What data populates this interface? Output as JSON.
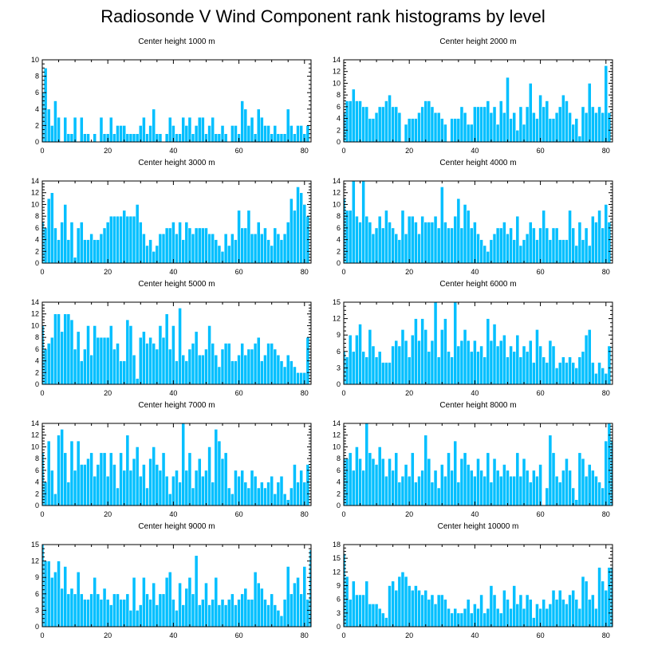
{
  "page": {
    "title": "Radiosonde V Wind Component rank histograms by level"
  },
  "colors": {
    "bar_fill": "#00BFFF",
    "bar_stroke": "#ffffff",
    "axis": "#000000"
  },
  "chart_data": [
    {
      "type": "bar",
      "title": "Center height 1000 m",
      "xlim": [
        0,
        82
      ],
      "ylim": [
        0,
        10
      ],
      "xticks": [
        0,
        20,
        40,
        60,
        80
      ],
      "yticks": [
        0,
        2,
        4,
        6,
        8,
        10
      ],
      "values": [
        6,
        9,
        4,
        2,
        5,
        3,
        0,
        3,
        1,
        1,
        3,
        0,
        3,
        1,
        1,
        0,
        1,
        0,
        3,
        1,
        1,
        3,
        1,
        2,
        2,
        2,
        1,
        1,
        1,
        1,
        2,
        3,
        1,
        2,
        4,
        1,
        1,
        0,
        1,
        3,
        2,
        1,
        1,
        3,
        2,
        3,
        1,
        2,
        3,
        3,
        1,
        2,
        3,
        1,
        1,
        2,
        1,
        0,
        2,
        2,
        1,
        5,
        4,
        2,
        3,
        1,
        4,
        3,
        2,
        2,
        1,
        2,
        1,
        1,
        1,
        4,
        2,
        1,
        2,
        2,
        1,
        2
      ]
    },
    {
      "type": "bar",
      "title": "Center height 2000 m",
      "xlim": [
        0,
        82
      ],
      "ylim": [
        0,
        14
      ],
      "xticks": [
        0,
        20,
        40,
        60,
        80
      ],
      "yticks": [
        0,
        2,
        4,
        6,
        8,
        10,
        12,
        14
      ],
      "values": [
        5,
        7,
        7,
        9,
        7,
        7,
        6,
        6,
        4,
        4,
        5,
        6,
        6,
        7,
        8,
        6,
        6,
        5,
        0,
        3,
        4,
        4,
        4,
        5,
        6,
        7,
        7,
        6,
        5,
        5,
        4,
        3,
        0,
        4,
        4,
        4,
        6,
        5,
        3,
        3,
        6,
        6,
        6,
        6,
        7,
        5,
        6,
        3,
        7,
        5,
        11,
        4,
        5,
        2,
        6,
        3,
        6,
        10,
        5,
        4,
        8,
        6,
        7,
        4,
        4,
        5,
        6,
        8,
        7,
        5,
        3,
        4,
        1,
        6,
        5,
        10,
        6,
        5,
        6,
        5,
        13,
        5
      ]
    },
    {
      "type": "bar",
      "title": "Center height 3000 m",
      "xlim": [
        0,
        82
      ],
      "ylim": [
        0,
        14
      ],
      "xticks": [
        0,
        20,
        40,
        60,
        80
      ],
      "yticks": [
        0,
        2,
        4,
        6,
        8,
        10,
        12,
        14
      ],
      "values": [
        7,
        6,
        11,
        12,
        6,
        4,
        7,
        10,
        4,
        7,
        1,
        6,
        7,
        4,
        4,
        5,
        4,
        4,
        5,
        6,
        7,
        8,
        8,
        8,
        8,
        9,
        8,
        8,
        8,
        10,
        7,
        5,
        3,
        4,
        2,
        3,
        5,
        5,
        6,
        6,
        7,
        5,
        7,
        4,
        7,
        6,
        5,
        6,
        6,
        6,
        6,
        5,
        5,
        4,
        3,
        2,
        5,
        3,
        5,
        4,
        9,
        6,
        6,
        9,
        5,
        5,
        7,
        5,
        6,
        4,
        3,
        6,
        5,
        4,
        5,
        7,
        11,
        9,
        13,
        12,
        10,
        8
      ]
    },
    {
      "type": "bar",
      "title": "Center height 4000 m",
      "xlim": [
        0,
        82
      ],
      "ylim": [
        0,
        14
      ],
      "xticks": [
        0,
        20,
        40,
        60,
        80
      ],
      "yticks": [
        0,
        2,
        4,
        6,
        8,
        10,
        12,
        14
      ],
      "values": [
        11,
        9,
        9,
        14,
        8,
        7,
        14,
        8,
        7,
        5,
        6,
        8,
        6,
        9,
        7,
        6,
        5,
        4,
        9,
        5,
        8,
        8,
        7,
        5,
        8,
        7,
        7,
        7,
        8,
        6,
        13,
        7,
        6,
        6,
        8,
        11,
        6,
        10,
        9,
        6,
        7,
        5,
        4,
        3,
        2,
        4,
        5,
        6,
        6,
        7,
        5,
        6,
        4,
        8,
        3,
        4,
        5,
        7,
        6,
        4,
        6,
        9,
        6,
        4,
        6,
        6,
        4,
        4,
        4,
        9,
        6,
        3,
        7,
        4,
        6,
        3,
        8,
        7,
        9,
        6,
        10,
        7
      ]
    },
    {
      "type": "bar",
      "title": "Center height 5000 m",
      "xlim": [
        0,
        82
      ],
      "ylim": [
        0,
        14
      ],
      "xticks": [
        0,
        20,
        40,
        60,
        80
      ],
      "yticks": [
        0,
        2,
        4,
        6,
        8,
        10,
        12,
        14
      ],
      "values": [
        10,
        6,
        7,
        8,
        12,
        12,
        9,
        12,
        12,
        11,
        6,
        9,
        4,
        6,
        10,
        5,
        10,
        8,
        8,
        8,
        8,
        10,
        6,
        7,
        4,
        4,
        11,
        10,
        5,
        1,
        8,
        9,
        7,
        8,
        7,
        6,
        10,
        8,
        12,
        6,
        10,
        4,
        13,
        5,
        4,
        6,
        7,
        9,
        5,
        5,
        6,
        10,
        7,
        5,
        3,
        6,
        7,
        7,
        4,
        4,
        5,
        7,
        5,
        6,
        6,
        7,
        8,
        4,
        5,
        7,
        7,
        6,
        5,
        4,
        3,
        5,
        4,
        3,
        2,
        2,
        2,
        8
      ]
    },
    {
      "type": "bar",
      "title": "Center height 6000 m",
      "xlim": [
        0,
        82
      ],
      "ylim": [
        0,
        15
      ],
      "xticks": [
        0,
        20,
        40,
        60,
        80
      ],
      "yticks": [
        0,
        3,
        6,
        9,
        12,
        15
      ],
      "values": [
        6,
        5,
        9,
        6,
        9,
        11,
        6,
        5,
        10,
        7,
        5,
        6,
        4,
        4,
        4,
        7,
        8,
        7,
        10,
        8,
        5,
        9,
        12,
        8,
        12,
        10,
        6,
        8,
        15,
        5,
        10,
        12,
        6,
        5,
        15,
        7,
        8,
        10,
        8,
        6,
        8,
        6,
        7,
        5,
        12,
        8,
        11,
        7,
        8,
        9,
        5,
        7,
        6,
        9,
        5,
        7,
        6,
        8,
        4,
        10,
        7,
        5,
        4,
        8,
        7,
        3,
        4,
        5,
        4,
        5,
        4,
        3,
        5,
        6,
        9,
        10,
        4,
        2,
        4,
        3,
        2,
        7
      ]
    },
    {
      "type": "bar",
      "title": "Center height 7000 m",
      "xlim": [
        0,
        82
      ],
      "ylim": [
        0,
        14
      ],
      "xticks": [
        0,
        20,
        40,
        60,
        80
      ],
      "yticks": [
        0,
        2,
        4,
        6,
        8,
        10,
        12,
        14
      ],
      "values": [
        9,
        4,
        11,
        6,
        2,
        12,
        13,
        9,
        4,
        11,
        6,
        11,
        7,
        7,
        8,
        9,
        5,
        7,
        9,
        9,
        5,
        9,
        7,
        3,
        9,
        6,
        12,
        6,
        8,
        10,
        5,
        7,
        3,
        8,
        10,
        7,
        6,
        9,
        5,
        2,
        5,
        6,
        4,
        14,
        6,
        9,
        3,
        6,
        8,
        5,
        6,
        10,
        4,
        13,
        11,
        8,
        9,
        3,
        2,
        6,
        5,
        6,
        4,
        3,
        6,
        5,
        3,
        4,
        3,
        4,
        5,
        2,
        4,
        5,
        2,
        1,
        3,
        7,
        4,
        6,
        4,
        7
      ]
    },
    {
      "type": "bar",
      "title": "Center height 8000 m",
      "xlim": [
        0,
        82
      ],
      "ylim": [
        0,
        14
      ],
      "xticks": [
        0,
        20,
        40,
        60,
        80
      ],
      "yticks": [
        0,
        2,
        4,
        6,
        8,
        10,
        12,
        14
      ],
      "values": [
        8,
        8,
        9,
        6,
        10,
        8,
        6,
        14,
        9,
        8,
        7,
        10,
        8,
        5,
        8,
        6,
        9,
        4,
        5,
        7,
        5,
        9,
        4,
        5,
        6,
        12,
        8,
        4,
        6,
        3,
        7,
        5,
        9,
        6,
        11,
        4,
        8,
        9,
        7,
        6,
        5,
        8,
        6,
        5,
        9,
        4,
        8,
        6,
        5,
        7,
        6,
        5,
        5,
        9,
        5,
        8,
        6,
        4,
        6,
        5,
        7,
        0,
        3,
        12,
        9,
        5,
        4,
        6,
        8,
        6,
        3,
        1,
        9,
        8,
        5,
        7,
        6,
        5,
        4,
        3,
        11,
        14,
        11
      ]
    },
    {
      "type": "bar",
      "title": "Center height 9000 m",
      "xlim": [
        0,
        82
      ],
      "ylim": [
        0,
        15
      ],
      "xticks": [
        0,
        20,
        40,
        60,
        80
      ],
      "yticks": [
        0,
        3,
        6,
        9,
        12,
        15
      ],
      "values": [
        15,
        12,
        12,
        9,
        10,
        12,
        7,
        11,
        6,
        7,
        6,
        10,
        6,
        5,
        5,
        6,
        9,
        6,
        5,
        7,
        5,
        4,
        6,
        6,
        5,
        5,
        6,
        3,
        9,
        3,
        4,
        9,
        6,
        5,
        8,
        4,
        6,
        6,
        9,
        10,
        5,
        3,
        8,
        4,
        7,
        9,
        6,
        13,
        4,
        5,
        8,
        4,
        5,
        9,
        4,
        5,
        4,
        5,
        6,
        4,
        5,
        6,
        7,
        5,
        5,
        10,
        8,
        7,
        5,
        4,
        6,
        4,
        3,
        2,
        5,
        11,
        6,
        8,
        9,
        6,
        11,
        5,
        14
      ]
    },
    {
      "type": "bar",
      "title": "Center height 10000 m",
      "xlim": [
        0,
        82
      ],
      "ylim": [
        0,
        18
      ],
      "xticks": [
        0,
        20,
        40,
        60,
        80
      ],
      "yticks": [
        0,
        3,
        6,
        9,
        12,
        15,
        18
      ],
      "values": [
        16,
        11,
        6,
        10,
        7,
        7,
        7,
        10,
        5,
        5,
        5,
        4,
        3,
        2,
        9,
        10,
        8,
        11,
        12,
        11,
        9,
        8,
        9,
        8,
        7,
        8,
        6,
        7,
        5,
        7,
        7,
        6,
        4,
        3,
        4,
        3,
        3,
        4,
        6,
        3,
        5,
        4,
        7,
        3,
        4,
        9,
        7,
        4,
        3,
        8,
        6,
        4,
        9,
        5,
        7,
        4,
        7,
        6,
        2,
        5,
        4,
        6,
        4,
        5,
        8,
        6,
        8,
        6,
        5,
        7,
        8,
        6,
        4,
        11,
        10,
        6,
        7,
        4,
        13,
        10,
        8,
        13,
        13
      ]
    }
  ]
}
